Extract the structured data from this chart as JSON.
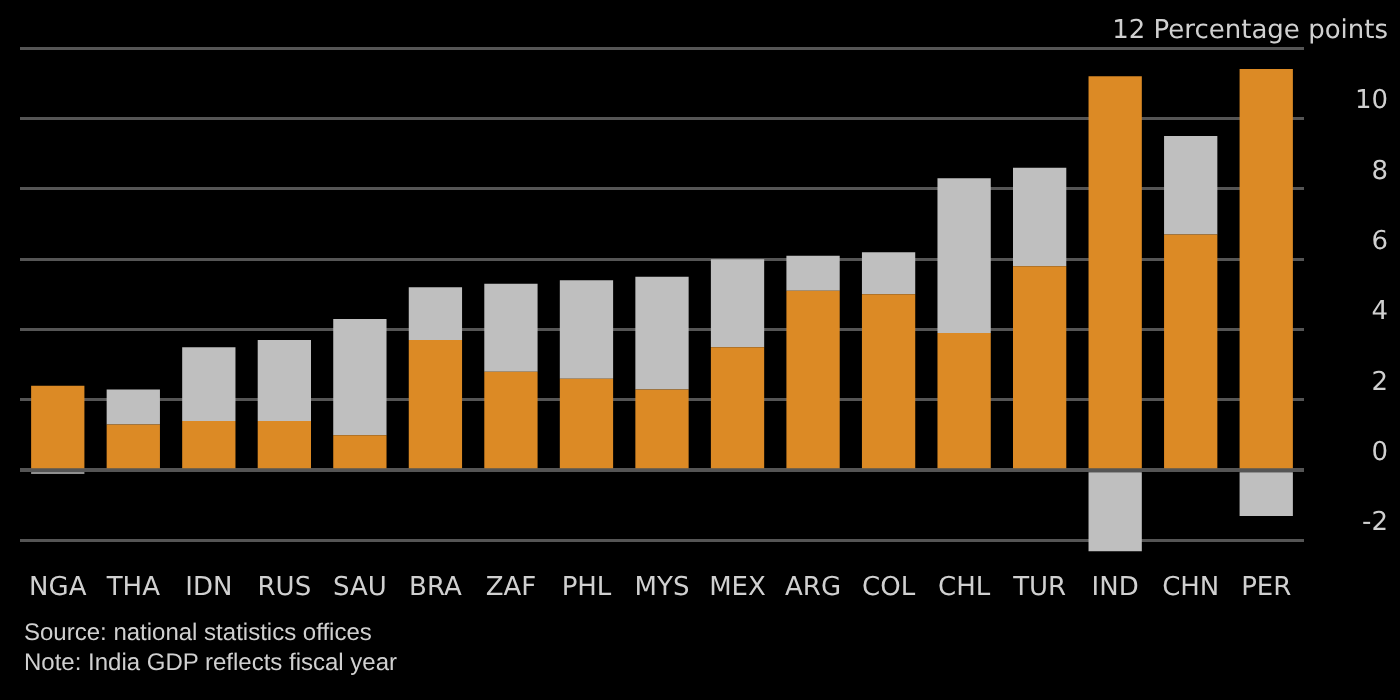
{
  "chart_data": {
    "type": "bar",
    "stacked": true,
    "categories": [
      "NGA",
      "THA",
      "IDN",
      "RUS",
      "SAU",
      "BRA",
      "ZAF",
      "PHL",
      "MYS",
      "MEX",
      "ARG",
      "COL",
      "CHL",
      "TUR",
      "IND",
      "CHN",
      "PER"
    ],
    "series": [
      {
        "color": "#dc8a25",
        "values": [
          2.4,
          1.3,
          1.4,
          1.4,
          1.0,
          3.7,
          2.8,
          2.6,
          2.3,
          3.5,
          5.1,
          5.0,
          3.9,
          5.8,
          11.2,
          6.7,
          11.4
        ]
      },
      {
        "color": "#bfbfbf",
        "values": [
          -0.1,
          1.0,
          2.1,
          2.3,
          3.3,
          1.5,
          2.5,
          2.8,
          3.2,
          2.5,
          1.0,
          1.2,
          4.4,
          2.8,
          -2.3,
          2.8,
          -1.3
        ]
      }
    ],
    "ylim": [
      -2.4,
      12
    ],
    "yticks": [
      -2,
      0,
      2,
      4,
      6,
      8,
      10,
      {
        "value": 12,
        "label": "12 Percentage points"
      }
    ],
    "grid": "y",
    "legend": false,
    "annotations": [
      "Source: national statistics offices",
      "Note: India GDP reflects fiscal year"
    ]
  }
}
